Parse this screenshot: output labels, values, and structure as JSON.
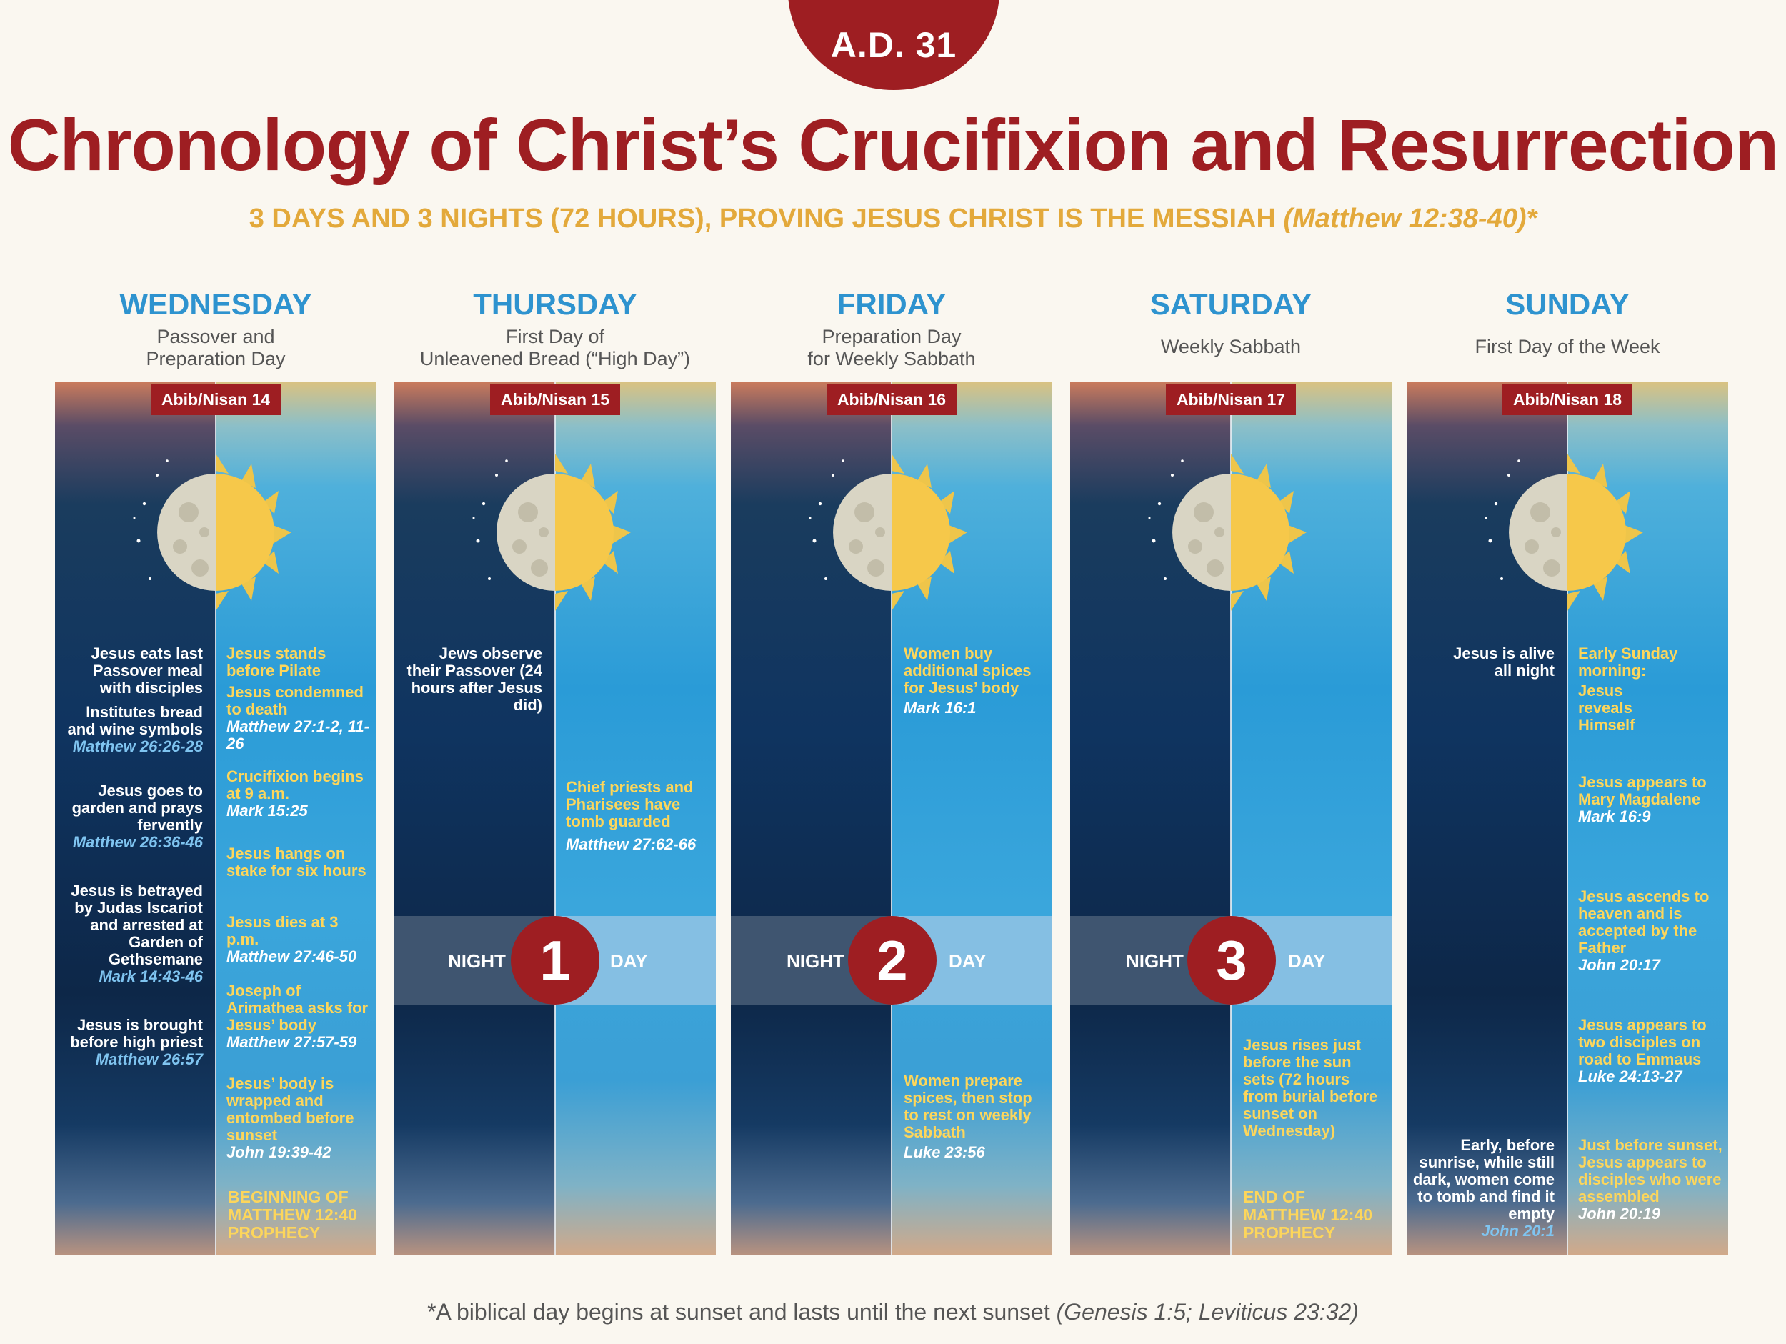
{
  "header": {
    "badge": "A.D. 31",
    "title": "Chronology of Christ’s Crucifixion and Resurrection",
    "subtitle": "3 DAYS AND 3 NIGHTS (72 HOURS), PROVING JESUS CHRIST IS THE MESSIAH",
    "subtitle_ref": "(Matthew 12:38-40)*"
  },
  "days": [
    {
      "name": "WEDNESDAY",
      "desc1": "Passover and",
      "desc2": "Preparation Day",
      "date": "Abib/Nisan 14"
    },
    {
      "name": "THURSDAY",
      "desc1": "First Day of",
      "desc2": "Unleavened Bread (“High Day”)",
      "date": "Abib/Nisan 15"
    },
    {
      "name": "FRIDAY",
      "desc1": "Preparation Day",
      "desc2": "for Weekly Sabbath",
      "date": "Abib/Nisan 16"
    },
    {
      "name": "SATURDAY",
      "desc1": "Weekly Sabbath",
      "desc2": "",
      "date": "Abib/Nisan 17"
    },
    {
      "name": "SUNDAY",
      "desc1": "First Day of the Week",
      "desc2": "",
      "date": "Abib/Nisan 18"
    }
  ],
  "events": {
    "wed_night": [
      {
        "text": "Jesus eats last Passover meal with disciples",
        "ref": ""
      },
      {
        "text": "Institutes bread and wine symbols",
        "ref": "Matthew 26:26-28"
      },
      {
        "text": "Jesus goes to garden and prays fervently",
        "ref": "Matthew 26:36-46"
      },
      {
        "text": "Jesus is betrayed by Judas Iscariot and arrested at Garden of Gethsemane",
        "ref": "Mark 14:43-46"
      },
      {
        "text": "Jesus is brought before high priest",
        "ref": "Matthew 26:57"
      }
    ],
    "wed_day": [
      {
        "text": "Jesus stands before Pilate",
        "ref": ""
      },
      {
        "text": "Jesus condemned to death",
        "ref": "Matthew 27:1-2, 11-26"
      },
      {
        "text": "Crucifixion begins at 9 a.m.",
        "ref": "Mark 15:25"
      },
      {
        "text": "Jesus hangs on stake for six hours",
        "ref": ""
      },
      {
        "text": "Jesus dies at 3 p.m.",
        "ref": "Matthew 27:46-50"
      },
      {
        "text": "Joseph of Arimathea asks for Jesus’ body",
        "ref": "Matthew 27:57-59"
      },
      {
        "text": "Jesus’ body is wrapped and entombed before sunset",
        "ref": "John 19:39-42"
      }
    ],
    "wed_prophecy": "BEGINNING OF MATTHEW 12:40 PROPHECY",
    "thu_night": {
      "text": "Jews observe their Passover (24 hours after Jesus did)",
      "ref": ""
    },
    "thu_day": {
      "text": "Chief priests and Pharisees have tomb guarded",
      "ref": "Matthew 27:62-66"
    },
    "fri_day1": {
      "text": "Women buy additional spices for Jesus’ body",
      "ref": "Mark 16:1"
    },
    "fri_day2": {
      "text": "Women prepare spices, then stop to rest on weekly Sabbath",
      "ref": "Luke 23:56"
    },
    "sat_day": {
      "text": "Jesus rises just before the sun sets (72 hours from burial before sunset on Wednesday)",
      "ref": ""
    },
    "sat_prophecy": "END OF MATTHEW 12:40 PROPHECY",
    "sun_night1": {
      "text": "Jesus is alive all night",
      "ref": ""
    },
    "sun_night2": {
      "text": "Early, before sunrise, while still dark, women come to tomb and find it empty",
      "ref": "John 20:1"
    },
    "sun_day": [
      {
        "text": "Early Sunday morning:",
        "ref": ""
      },
      {
        "text": "Jesus reveals Himself",
        "ref": ""
      },
      {
        "text": "Jesus appears to Mary Magdalene",
        "ref": "Mark 16:9"
      },
      {
        "text": "Jesus ascends to heaven and is accepted by the Father",
        "ref": "John 20:17"
      },
      {
        "text": "Jesus appears to two disciples on road to Emmaus",
        "ref": "Luke 24:13-27"
      },
      {
        "text": "Just before sunset, Jesus appears to disciples who were assembled",
        "ref": "John 20:19"
      }
    ]
  },
  "bands": [
    {
      "night": "NIGHT",
      "num": "1",
      "day": "DAY"
    },
    {
      "night": "NIGHT",
      "num": "2",
      "day": "DAY"
    },
    {
      "night": "NIGHT",
      "num": "3",
      "day": "DAY"
    }
  ],
  "footnote": {
    "text": "*A biblical day begins at sunset and lasts until the next sunset",
    "ref": "(Genesis 1:5; Leviticus 23:32)"
  },
  "colors": {
    "accent_red": "#9e1e22",
    "subtitle_gold": "#e3a93b",
    "day_name_blue": "#2e93cf",
    "event_day_yellow": "#fdd65b",
    "night_ref_blue": "#7fc4f0"
  },
  "icons": [
    "moon-icon",
    "sun-icon",
    "star-icon"
  ]
}
